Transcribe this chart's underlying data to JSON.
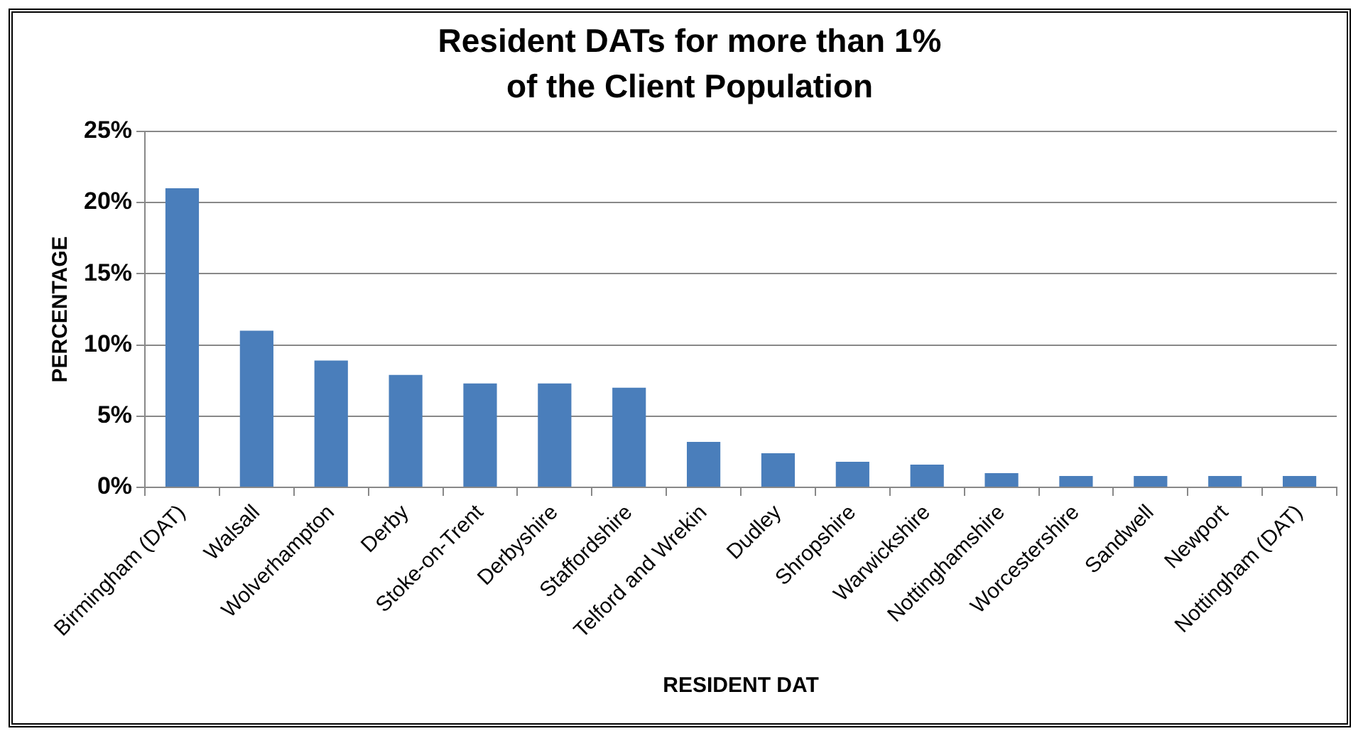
{
  "chart_data": {
    "type": "bar",
    "title": "Resident DATs for more than 1%\nof the Client Population",
    "xlabel": "RESIDENT DAT",
    "ylabel": "PERCENTAGE",
    "categories": [
      "Birmingham (DAT)",
      "Walsall",
      "Wolverhampton",
      "Derby",
      "Stoke-on-Trent",
      "Derbyshire",
      "Staffordshire",
      "Telford and Wrekin",
      "Dudley",
      "Shropshire",
      "Warwickshire",
      "Nottinghamshire",
      "Worcestershire",
      "Sandwell",
      "Newport",
      "Nottingham (DAT)"
    ],
    "values": [
      21.0,
      11.0,
      8.9,
      7.9,
      7.3,
      7.3,
      7.0,
      3.2,
      2.4,
      1.8,
      1.6,
      1.0,
      0.8,
      0.8,
      0.8,
      0.8
    ],
    "color": "#4a7ebb",
    "ylim": [
      0,
      25
    ],
    "yticks": [
      {
        "value": 0,
        "label": "0%"
      },
      {
        "value": 5,
        "label": "5%"
      },
      {
        "value": 10,
        "label": "10%"
      },
      {
        "value": 15,
        "label": "15%"
      },
      {
        "value": 20,
        "label": "20%"
      },
      {
        "value": 25,
        "label": "25%"
      }
    ],
    "grid": "y",
    "legend": false
  }
}
